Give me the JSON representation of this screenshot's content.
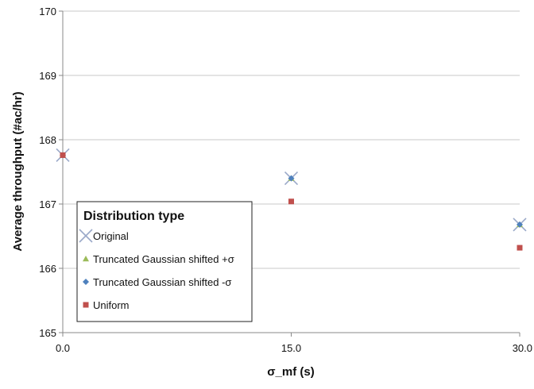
{
  "chart_data": {
    "type": "scatter",
    "title": "",
    "xlabel": "σ_mf (s)",
    "ylabel": "Average throughput (#ac/hr)",
    "xlim": [
      0,
      30
    ],
    "ylim": [
      165,
      170
    ],
    "x_ticks": [
      "0.0",
      "15.0",
      "30.0"
    ],
    "y_ticks": [
      "165",
      "166",
      "167",
      "168",
      "169",
      "170"
    ],
    "grid": "horizontal",
    "legend_position": "bottom-left",
    "legend_title": "Distribution type",
    "series": [
      {
        "name": "Original",
        "marker": "x",
        "color": "#9aa9c9",
        "x": [
          0,
          15,
          30
        ],
        "y": [
          167.76,
          167.4,
          166.68
        ]
      },
      {
        "name": "Truncated Gaussian shifted +σ",
        "marker": "triangle",
        "color": "#9bbb59",
        "x": [
          0,
          15,
          30
        ],
        "y": [
          167.76,
          167.4,
          166.68
        ]
      },
      {
        "name": "Truncated Gaussian shifted -σ",
        "marker": "diamond",
        "color": "#4f81bd",
        "x": [
          0,
          15,
          30
        ],
        "y": [
          167.76,
          167.4,
          166.68
        ]
      },
      {
        "name": "Uniform",
        "marker": "square",
        "color": "#c0504d",
        "x": [
          0,
          15,
          30
        ],
        "y": [
          167.76,
          167.04,
          166.32
        ]
      }
    ]
  }
}
